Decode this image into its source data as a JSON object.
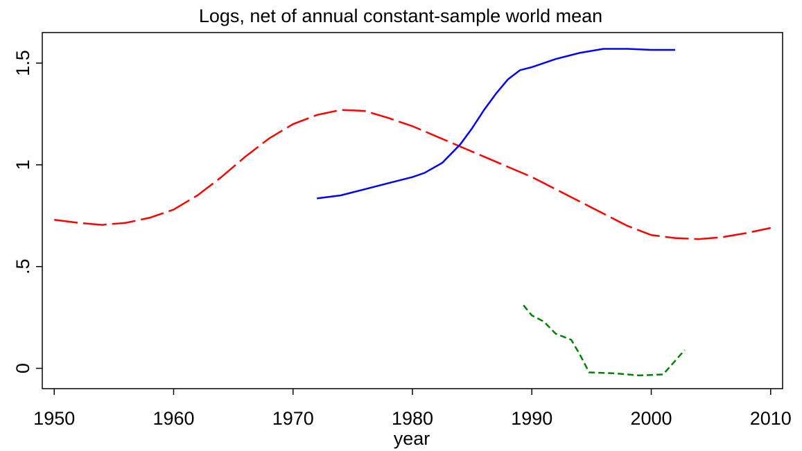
{
  "chart_data": {
    "type": "line",
    "title": "Logs, net of annual constant-sample world mean",
    "x_label": "year",
    "xlim": [
      1949,
      2011
    ],
    "xticks": [
      1950,
      1960,
      1970,
      1980,
      1990,
      2000,
      2010
    ],
    "ylim": [
      -0.1,
      1.65
    ],
    "yticks": [
      0,
      {
        "value": 0.5,
        "label": ".5"
      },
      1,
      1.5
    ],
    "grid": false,
    "series": [
      {
        "color": "#ff0000",
        "line_style": "long-dash",
        "x": [
          1950,
          1952,
          1954,
          1956,
          1958,
          1960,
          1962,
          1964,
          1966,
          1968,
          1970,
          1972,
          1974,
          1976,
          1978,
          1980,
          1982,
          1984,
          1986,
          1988,
          1990,
          1992,
          1994,
          1996,
          1998,
          2000,
          2002,
          2004,
          2006,
          2008,
          2010
        ],
        "values": [
          0.73,
          0.715,
          0.705,
          0.715,
          0.74,
          0.78,
          0.85,
          0.94,
          1.04,
          1.13,
          1.2,
          1.245,
          1.27,
          1.265,
          1.23,
          1.19,
          1.14,
          1.09,
          1.04,
          0.99,
          0.94,
          0.88,
          0.82,
          0.76,
          0.7,
          0.655,
          0.64,
          0.635,
          0.645,
          0.665,
          0.69
        ]
      },
      {
        "color": "#0000ff",
        "line_style": "solid",
        "x": [
          1972,
          1974,
          1976,
          1978,
          1980,
          1981,
          1982.5,
          1984,
          1985,
          1986,
          1987,
          1988,
          1989,
          1990,
          1992,
          1994,
          1996,
          1998,
          2000,
          2002
        ],
        "values": [
          0.835,
          0.85,
          0.88,
          0.91,
          0.94,
          0.96,
          1.01,
          1.1,
          1.18,
          1.27,
          1.35,
          1.42,
          1.465,
          1.48,
          1.52,
          1.55,
          1.57,
          1.57,
          1.565,
          1.565
        ]
      },
      {
        "color": "#008000",
        "line_style": "short-dash",
        "x": [
          1989.3,
          1990,
          1991,
          1992,
          1993.3,
          1994,
          1994.8,
          1997,
          1999,
          2001,
          2002.8
        ],
        "values": [
          0.31,
          0.26,
          0.23,
          0.17,
          0.14,
          0.07,
          -0.02,
          -0.025,
          -0.035,
          -0.03,
          0.09
        ]
      }
    ]
  }
}
